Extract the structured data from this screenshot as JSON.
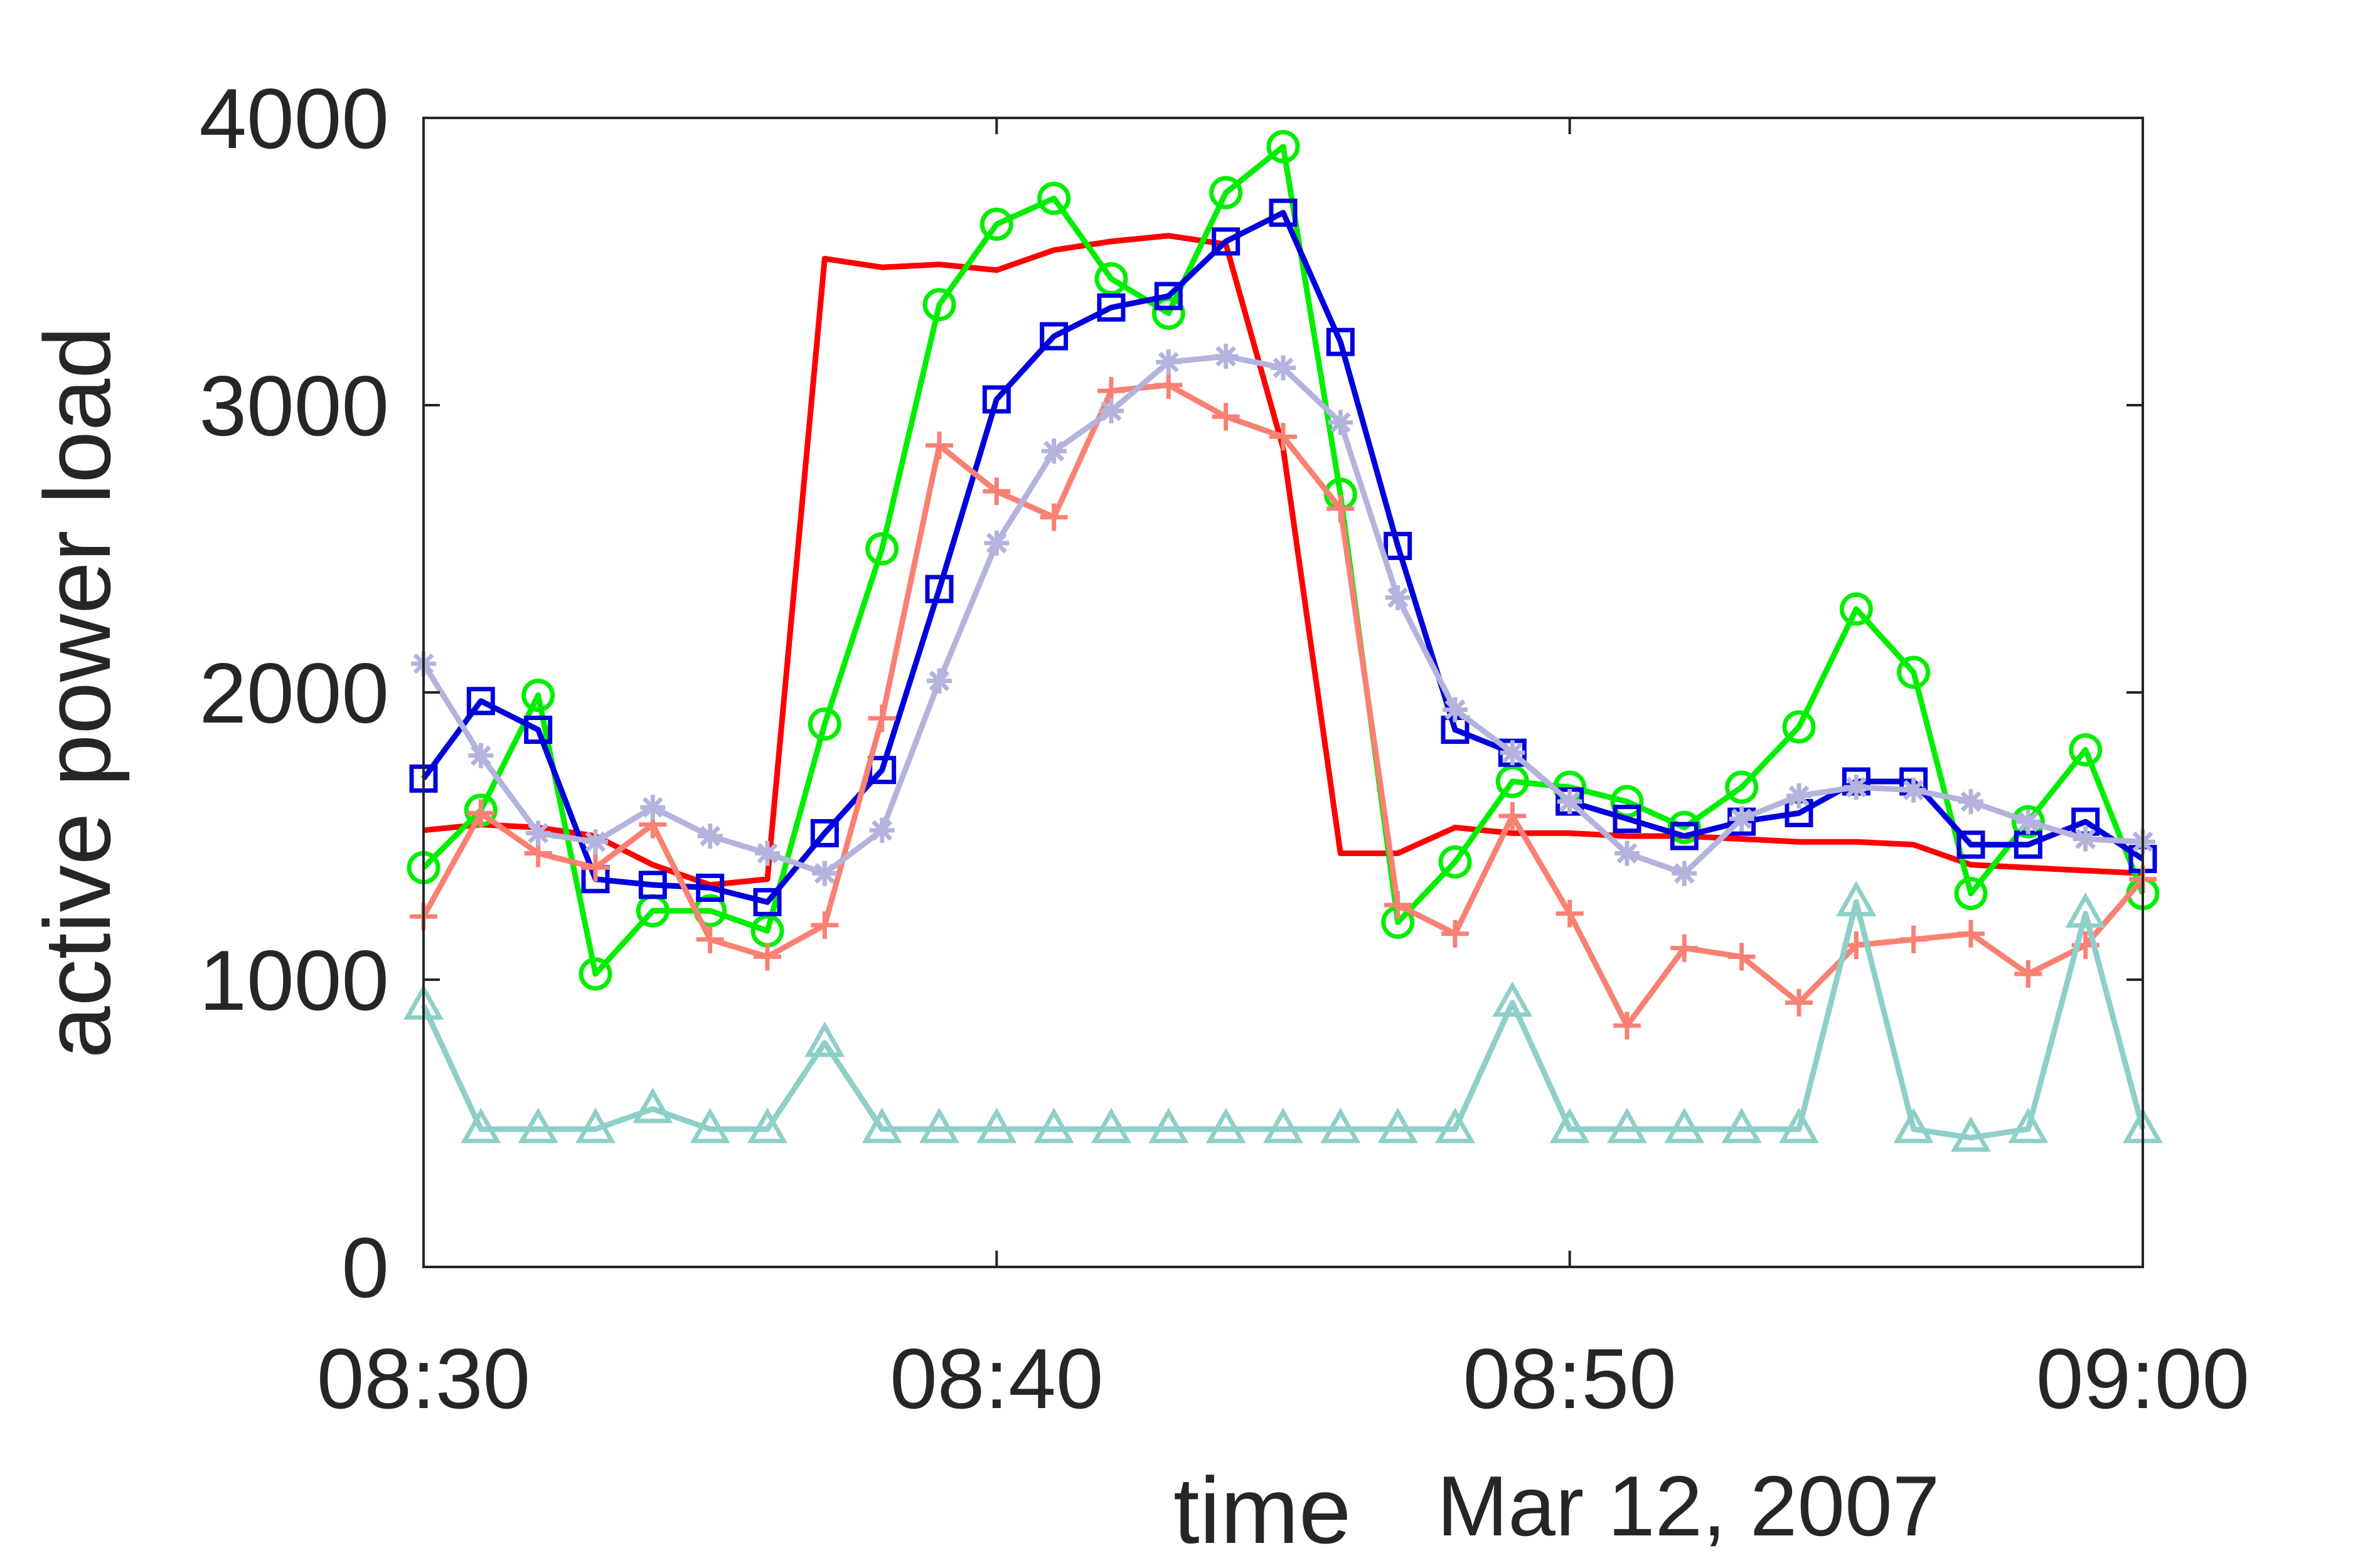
{
  "chart_data": {
    "type": "line",
    "xlabel": "time",
    "ylabel": "active power load",
    "date_label": "Mar 12, 2007",
    "x_ticks": [
      "08:30",
      "08:40",
      "08:50",
      "09:00"
    ],
    "y_ticks": [
      0,
      1000,
      2000,
      3000,
      4000
    ],
    "xlim": [
      "08:30",
      "09:00"
    ],
    "ylim": [
      0,
      4000
    ],
    "grid": false,
    "x": [
      "08:30",
      "08:31",
      "08:32",
      "08:33",
      "08:34",
      "08:35",
      "08:36",
      "08:37",
      "08:38",
      "08:39",
      "08:40",
      "08:41",
      "08:42",
      "08:43",
      "08:44",
      "08:45",
      "08:46",
      "08:47",
      "08:48",
      "08:49",
      "08:50",
      "08:51",
      "08:52",
      "08:53",
      "08:54",
      "08:55",
      "08:56",
      "08:57",
      "08:58",
      "08:59",
      "09:00"
    ],
    "series": [
      {
        "color": "#ff0000",
        "marker": "none",
        "values": [
          1520,
          1540,
          1530,
          1500,
          1400,
          1330,
          1350,
          3510,
          3480,
          3490,
          3470,
          3540,
          3570,
          3590,
          3560,
          2850,
          1440,
          1440,
          1530,
          1510,
          1510,
          1500,
          1500,
          1490,
          1480,
          1480,
          1470,
          1400,
          1390,
          1380,
          1370
        ]
      },
      {
        "color": "#00ee00",
        "marker": "circle",
        "values": [
          1390,
          1590,
          1990,
          1020,
          1240,
          1240,
          1170,
          1890,
          2500,
          3350,
          3630,
          3720,
          3440,
          3320,
          3740,
          3900,
          2690,
          1200,
          1410,
          1690,
          1670,
          1620,
          1530,
          1670,
          1880,
          2290,
          2070,
          1300,
          1550,
          1800,
          1300
        ]
      },
      {
        "color": "#0000dd",
        "marker": "square",
        "values": [
          1700,
          1970,
          1870,
          1350,
          1330,
          1320,
          1270,
          1510,
          1730,
          2360,
          3020,
          3240,
          3340,
          3380,
          3570,
          3670,
          3220,
          2510,
          1870,
          1790,
          1620,
          1560,
          1500,
          1550,
          1580,
          1690,
          1690,
          1470,
          1470,
          1550,
          1420
        ]
      },
      {
        "color": "#f98072",
        "marker": "plus",
        "values": [
          1220,
          1580,
          1440,
          1390,
          1540,
          1140,
          1080,
          1190,
          1910,
          2860,
          2700,
          2610,
          3050,
          3070,
          2960,
          2890,
          2640,
          1260,
          1160,
          1570,
          1230,
          840,
          1110,
          1080,
          920,
          1120,
          1140,
          1160,
          1020,
          1120,
          1350
        ]
      },
      {
        "color": "#b3b3dd",
        "marker": "asterisk",
        "values": [
          2100,
          1780,
          1510,
          1480,
          1600,
          1500,
          1440,
          1370,
          1520,
          2040,
          2520,
          2840,
          2980,
          3150,
          3170,
          3130,
          2940,
          2330,
          1940,
          1790,
          1620,
          1440,
          1370,
          1560,
          1640,
          1670,
          1660,
          1620,
          1550,
          1490,
          1480
        ]
      },
      {
        "color": "#8ecfc9",
        "marker": "triangle",
        "values": [
          910,
          480,
          480,
          480,
          550,
          480,
          480,
          780,
          480,
          480,
          480,
          480,
          480,
          480,
          480,
          480,
          480,
          480,
          480,
          920,
          480,
          480,
          480,
          480,
          480,
          1270,
          480,
          450,
          480,
          1230,
          480
        ]
      }
    ]
  }
}
